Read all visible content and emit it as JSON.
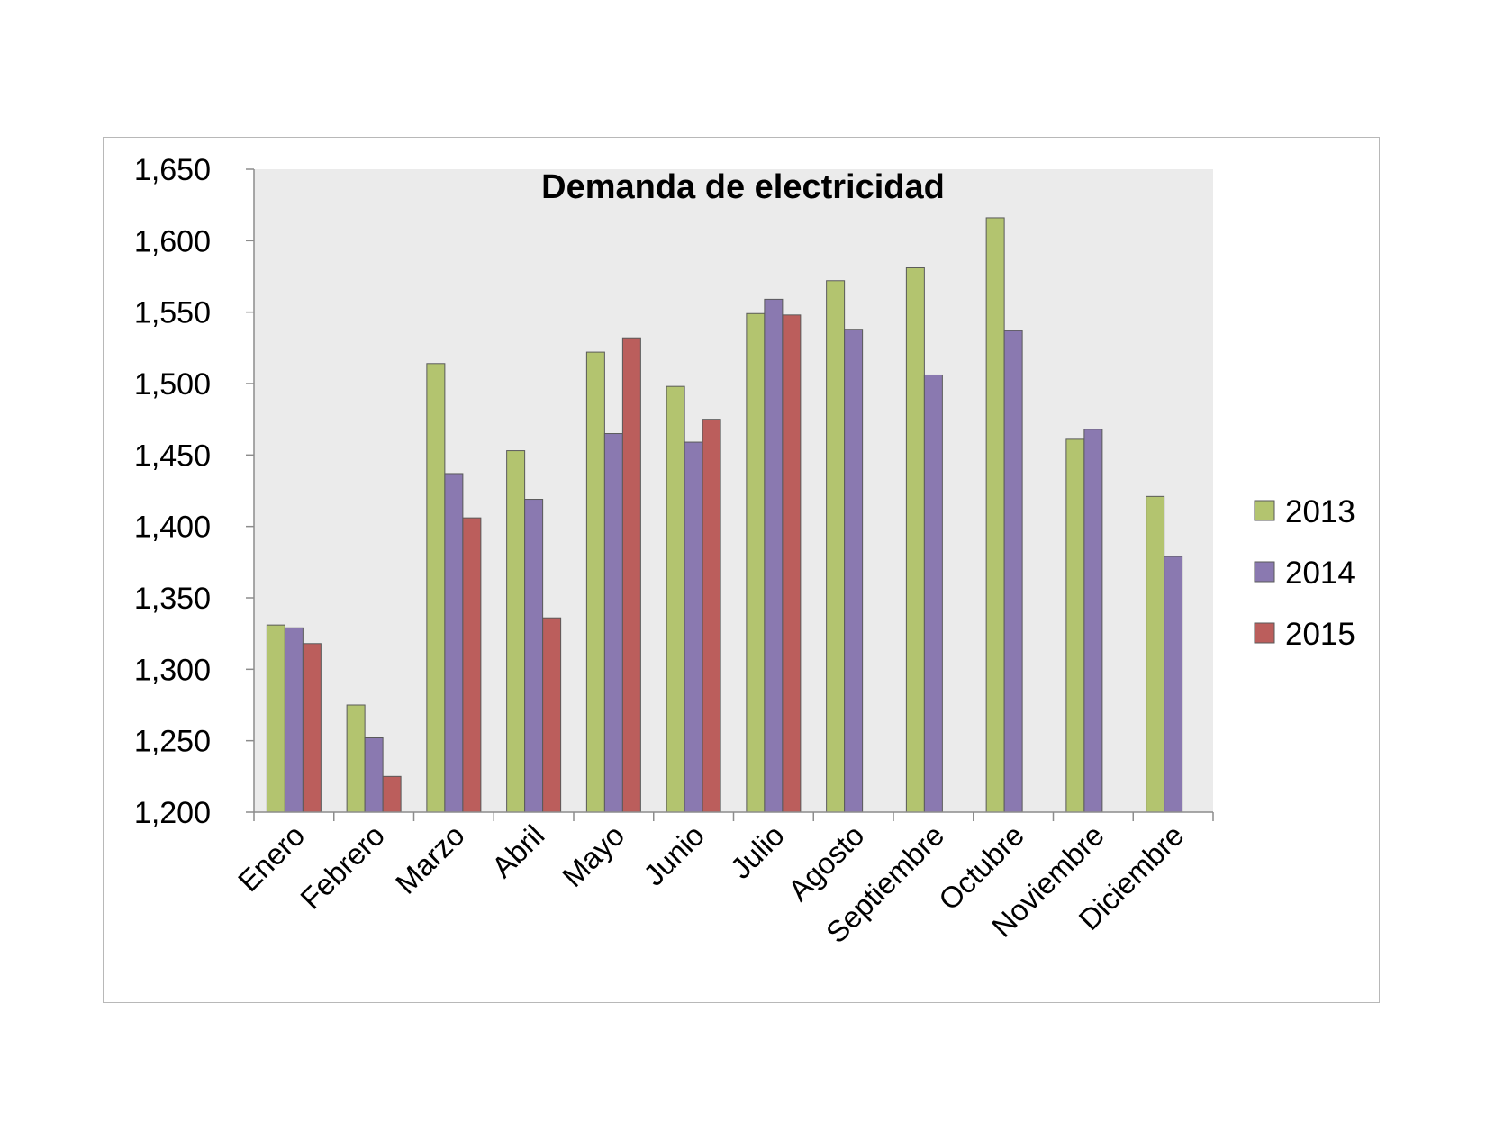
{
  "chart_data": {
    "type": "bar",
    "title": "Demanda de electricidad",
    "xlabel": "",
    "ylabel": "",
    "ylim": [
      1200,
      1650
    ],
    "yticks": [
      1200,
      1250,
      1300,
      1350,
      1400,
      1450,
      1500,
      1550,
      1600,
      1650
    ],
    "ytick_labels": [
      "1,200",
      "1,250",
      "1,300",
      "1,350",
      "1,400",
      "1,450",
      "1,500",
      "1,550",
      "1,600",
      "1,650"
    ],
    "grid": false,
    "legend": "right",
    "categories": [
      "Enero",
      "Febrero",
      "Marzo",
      "Abril",
      "Mayo",
      "Junio",
      "Julio",
      "Agosto",
      "Septiembre",
      "Octubre",
      "Noviembre",
      "Diciembre"
    ],
    "series": [
      {
        "name": "2013",
        "color": "#b3c46f",
        "values": [
          1331,
          1275,
          1514,
          1453,
          1522,
          1498,
          1549,
          1572,
          1581,
          1616,
          1461,
          1421
        ]
      },
      {
        "name": "2014",
        "color": "#8a79b0",
        "values": [
          1329,
          1252,
          1437,
          1419,
          1465,
          1459,
          1559,
          1538,
          1506,
          1537,
          1468,
          1379
        ]
      },
      {
        "name": "2015",
        "color": "#bb5e5c",
        "values": [
          1318,
          1225,
          1406,
          1336,
          1532,
          1475,
          1548,
          null,
          null,
          null,
          null,
          null
        ]
      }
    ],
    "plot_background": "#ebebeb",
    "bar_edge_color": "#5a5a5a"
  }
}
